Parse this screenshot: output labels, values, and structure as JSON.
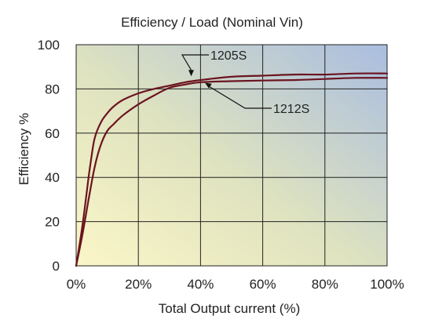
{
  "chart_data": {
    "type": "line",
    "title": "Efficiency / Load (Nominal Vin)",
    "xlabel": "Total Output current (%)",
    "ylabel": "Efficiency %",
    "xlim": [
      0,
      100
    ],
    "ylim": [
      0,
      100
    ],
    "x_ticks": [
      0,
      20,
      40,
      60,
      80,
      100
    ],
    "x_tick_labels": [
      "0%",
      "20%",
      "40%",
      "60%",
      "80%",
      "100%"
    ],
    "y_ticks": [
      0,
      20,
      40,
      60,
      80,
      100
    ],
    "y_tick_labels": [
      "0",
      "20",
      "40",
      "60",
      "80",
      "100"
    ],
    "grid": true,
    "line_color": "#6b1420",
    "series": [
      {
        "name": "1205S",
        "x": [
          0,
          2,
          4,
          5,
          6,
          8,
          10,
          12,
          15,
          20,
          25,
          30,
          35,
          40,
          50,
          60,
          70,
          80,
          90,
          100
        ],
        "y": [
          0,
          18,
          40,
          50,
          58,
          65,
          69,
          72,
          75,
          78,
          80,
          81.5,
          83,
          84,
          85.5,
          86,
          86.5,
          86.5,
          87,
          87
        ]
      },
      {
        "name": "1212S",
        "x": [
          0,
          2,
          4,
          6,
          8,
          10,
          12,
          15,
          20,
          25,
          30,
          35,
          40,
          50,
          60,
          70,
          80,
          90,
          100
        ],
        "y": [
          0,
          14,
          30,
          45,
          55,
          61,
          64,
          68,
          73,
          77,
          80.5,
          82,
          83,
          83.5,
          83.8,
          84,
          84.5,
          85,
          85
        ]
      }
    ],
    "annotations": [
      {
        "text": "1205S",
        "series": "1205S",
        "x": 37,
        "y": 85
      },
      {
        "text": "1212S",
        "series": "1212S",
        "x": 48,
        "y": 83.5
      }
    ]
  }
}
